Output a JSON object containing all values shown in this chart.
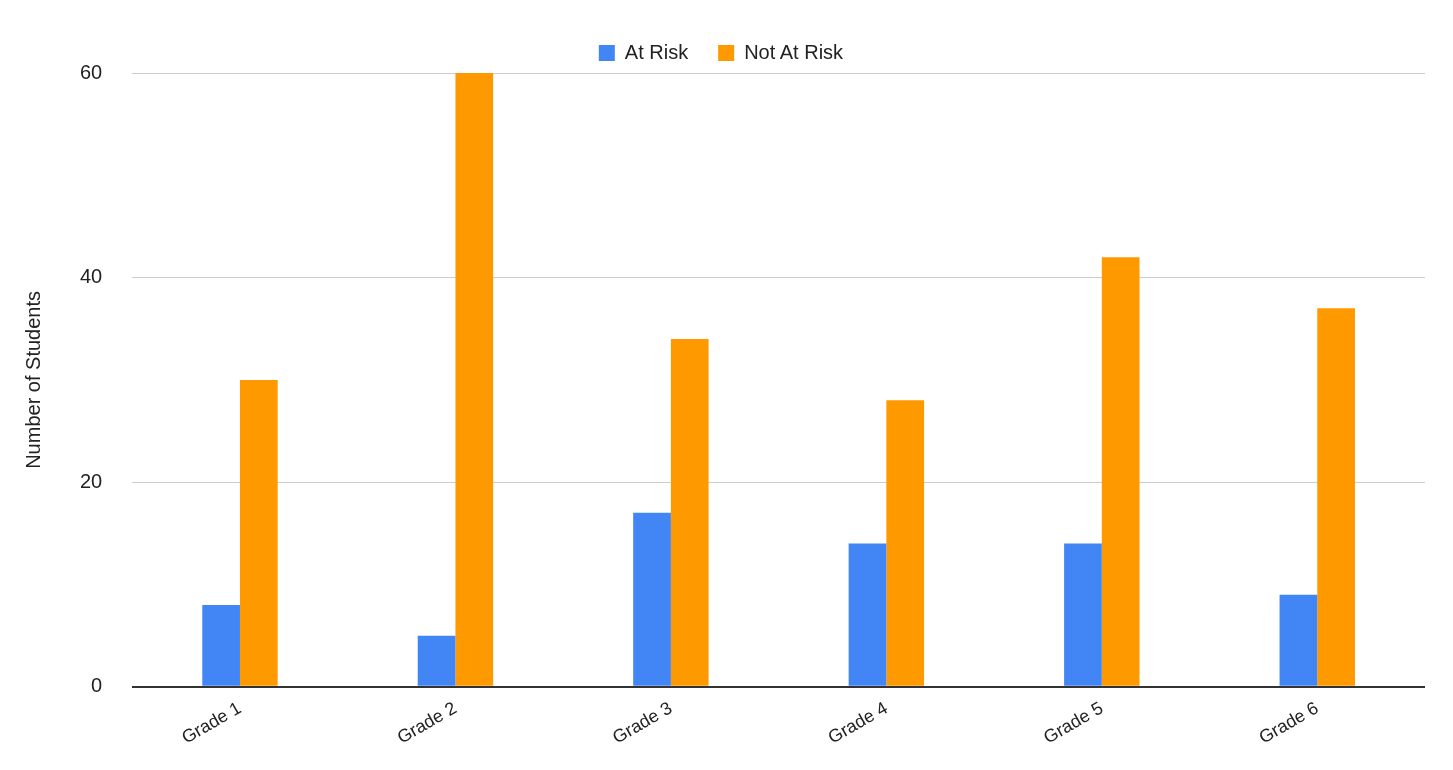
{
  "chart_data": {
    "type": "bar",
    "ylabel": "Number of Students",
    "categories": [
      "Grade 1",
      "Grade 2",
      "Grade 3",
      "Grade 4",
      "Grade 5",
      "Grade 6"
    ],
    "series": [
      {
        "name": "At Risk",
        "color": "#4285f4",
        "values": [
          8,
          5,
          17,
          14,
          14,
          9
        ]
      },
      {
        "name": "Not At Risk",
        "color": "#ff9900",
        "values": [
          30,
          60,
          34,
          28,
          42,
          37
        ]
      }
    ],
    "ylim": [
      0,
      60
    ],
    "yticks": [
      0,
      20,
      40,
      60
    ],
    "grid": "y",
    "legend": "top"
  }
}
